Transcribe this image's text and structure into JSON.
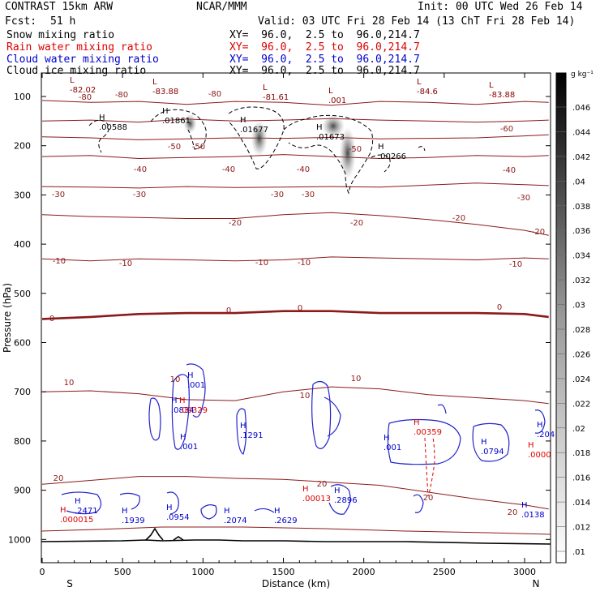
{
  "header": {
    "title": "CONTRAST 15km ARW",
    "center": "NCAR/MMM",
    "init": "Init: 00 UTC Wed 26 Feb 14",
    "fcst_label": "Fcst:",
    "fcst_value": "51 h",
    "valid": "Valid: 03 UTC Fri 28 Feb 14 (13 ChT Fri 28 Feb 14)"
  },
  "fields": [
    {
      "name": "Snow mixing ratio",
      "xy": "XY=  96.0,  2.5 to  96.0,214.7",
      "color": "#000000"
    },
    {
      "name": "Rain water mixing ratio",
      "xy": "XY=  96.0,  2.5 to  96.0,214.7",
      "color": "#dd0000"
    },
    {
      "name": "Cloud water mixing ratio",
      "xy": "XY=  96.0,  2.5 to  96.0,214.7",
      "color": "#0000cc"
    },
    {
      "name": "Cloud ice mixing ratio",
      "xy": "XY=  96.0,  2.5 to  96.0,214.7",
      "color": "#000000"
    }
  ],
  "chart_data": {
    "type": "line",
    "xlabel": "Distance (km)",
    "ylabel": "Pressure (hPa)",
    "xlim": [
      0,
      3150
    ],
    "ylim": [
      1050,
      50
    ],
    "x_ticks": [
      0,
      500,
      1000,
      1500,
      2000,
      2500,
      3000
    ],
    "y_ticks": [
      100,
      200,
      300,
      400,
      500,
      600,
      700,
      800,
      900,
      1000
    ],
    "endpoints": {
      "left": "S",
      "right": "N"
    },
    "colorbar": {
      "unit": "g kg⁻¹",
      "ticks": [
        ".046",
        ".044",
        ".042",
        ".04",
        ".038",
        ".036",
        ".034",
        ".032",
        ".03",
        ".028",
        ".026",
        ".024",
        ".022",
        ".02",
        ".018",
        ".016",
        ".014",
        ".012",
        ".01"
      ]
    },
    "temperature_labels": [
      "-80",
      "-80",
      "-80",
      "-50",
      "-50",
      "-60",
      "-50",
      "-40",
      "-40",
      "-40",
      "-40",
      "-30",
      "-30",
      "-30",
      "-30",
      "-30",
      "-20",
      "-20",
      "-20",
      "-20",
      "-10",
      "-10",
      "-10",
      "-10",
      "-10",
      "0",
      "0",
      "0",
      "0",
      "10",
      "10",
      "10",
      "10",
      "20",
      "20",
      "20",
      "20"
    ],
    "temperature_series": [
      {
        "label": "-80",
        "x": [
          0,
          300,
          600,
          900,
          1200,
          1500,
          1800,
          2100,
          2400,
          2700,
          3000,
          3150
        ],
        "p": [
          108,
          112,
          110,
          116,
          110,
          112,
          118,
          110,
          112,
          116,
          110,
          112
        ]
      },
      {
        "label": "-60",
        "x": [
          0,
          300,
          600,
          900,
          1200,
          1500,
          1800,
          2100,
          2400,
          2700,
          3000,
          3150
        ],
        "p": [
          150,
          148,
          152,
          146,
          150,
          148,
          145,
          148,
          150,
          152,
          150,
          148
        ]
      },
      {
        "label": "-50",
        "x": [
          0,
          300,
          600,
          900,
          1200,
          1500,
          1800,
          2100,
          2400,
          2700,
          3000,
          3150
        ],
        "p": [
          182,
          184,
          188,
          186,
          184,
          185,
          183,
          186,
          185,
          184,
          180,
          178
        ]
      },
      {
        "label": "-40",
        "x": [
          0,
          300,
          600,
          900,
          1200,
          1500,
          1800,
          2100,
          2400,
          2700,
          3000,
          3150
        ],
        "p": [
          222,
          220,
          226,
          224,
          222,
          218,
          222,
          226,
          224,
          220,
          222,
          220
        ]
      },
      {
        "label": "-30",
        "x": [
          0,
          300,
          600,
          900,
          1200,
          1500,
          1800,
          2100,
          2400,
          2700,
          3000,
          3150
        ],
        "p": [
          283,
          284,
          286,
          283,
          285,
          284,
          283,
          284,
          280,
          276,
          279,
          281
        ]
      },
      {
        "label": "-20",
        "x": [
          0,
          300,
          600,
          900,
          1200,
          1500,
          1800,
          2100,
          2400,
          2700,
          3000,
          3150
        ],
        "p": [
          340,
          344,
          346,
          348,
          348,
          340,
          336,
          342,
          350,
          360,
          372,
          382
        ]
      },
      {
        "label": "-10",
        "x": [
          0,
          300,
          600,
          900,
          1200,
          1500,
          1800,
          2100,
          2400,
          2700,
          3000,
          3150
        ],
        "p": [
          430,
          434,
          430,
          432,
          434,
          432,
          426,
          428,
          430,
          432,
          428,
          430
        ]
      },
      {
        "label": "0",
        "x": [
          0,
          300,
          600,
          900,
          1200,
          1500,
          1800,
          2100,
          2400,
          2700,
          3000,
          3150
        ],
        "p": [
          552,
          548,
          542,
          540,
          540,
          536,
          536,
          540,
          540,
          540,
          542,
          548
        ]
      },
      {
        "label": "10",
        "x": [
          0,
          300,
          600,
          900,
          1200,
          1500,
          1800,
          2100,
          2400,
          2700,
          3000,
          3150
        ],
        "p": [
          700,
          698,
          704,
          716,
          718,
          700,
          690,
          694,
          706,
          712,
          718,
          724
        ]
      },
      {
        "label": "20",
        "x": [
          0,
          300,
          600,
          900,
          1200,
          1500,
          1800,
          2100,
          2400,
          2700,
          3000,
          3150
        ],
        "p": [
          888,
          880,
          872,
          872,
          876,
          878,
          884,
          890,
          904,
          918,
          930,
          938
        ]
      }
    ],
    "maxima_labels": [
      {
        "kind": "H",
        "value": ".00588",
        "color": "#000000"
      },
      {
        "kind": "H",
        "value": ".01861",
        "color": "#000000"
      },
      {
        "kind": "H",
        "value": ".01677",
        "color": "#000000"
      },
      {
        "kind": "H",
        "value": ".01673",
        "color": "#000000"
      },
      {
        "kind": "H",
        "value": ".00266",
        "color": "#000000"
      },
      {
        "kind": "L",
        "value": "-82.02",
        "color": "#880000"
      },
      {
        "kind": "L",
        "value": "-83.88",
        "color": "#880000"
      },
      {
        "kind": "L",
        "value": "-81.61",
        "color": "#880000"
      },
      {
        "kind": "L",
        "value": "-84.6",
        "color": "#880000"
      },
      {
        "kind": "L",
        "value": "-83.88",
        "color": "#880000"
      },
      {
        "kind": "L",
        "value": ".001",
        "color": "#880000"
      },
      {
        "kind": "H",
        "value": ".001",
        "color": "#0000cc"
      },
      {
        "kind": "H",
        "value": ".0834",
        "color": "#0000cc"
      },
      {
        "kind": "H",
        "value": ".001",
        "color": "#0000cc"
      },
      {
        "kind": "H",
        "value": ".1291",
        "color": "#0000cc"
      },
      {
        "kind": "H",
        "value": ".001",
        "color": "#0000cc"
      },
      {
        "kind": "H",
        "value": ".0794",
        "color": "#0000cc"
      },
      {
        "kind": "H",
        "value": ".2471",
        "color": "#0000cc"
      },
      {
        "kind": "H",
        "value": ".1939",
        "color": "#0000cc"
      },
      {
        "kind": "H",
        "value": ".0954",
        "color": "#0000cc"
      },
      {
        "kind": "H",
        "value": ".2074",
        "color": "#0000cc"
      },
      {
        "kind": "H",
        "value": ".2629",
        "color": "#0000cc"
      },
      {
        "kind": "H",
        "value": ".2896",
        "color": "#0000cc"
      },
      {
        "kind": "H",
        "value": ".0138",
        "color": "#0000cc"
      },
      {
        "kind": "H",
        "value": ".204",
        "color": "#0000cc"
      },
      {
        "kind": "H",
        "value": ".00329",
        "color": "#dd0000"
      },
      {
        "kind": "H",
        "value": ".00359",
        "color": "#dd0000"
      },
      {
        "kind": "H",
        "value": ".00013",
        "color": "#dd0000"
      },
      {
        "kind": "H",
        "value": ".000015",
        "color": "#dd0000"
      },
      {
        "kind": "H",
        "value": ".0000",
        "color": "#dd0000"
      }
    ]
  }
}
